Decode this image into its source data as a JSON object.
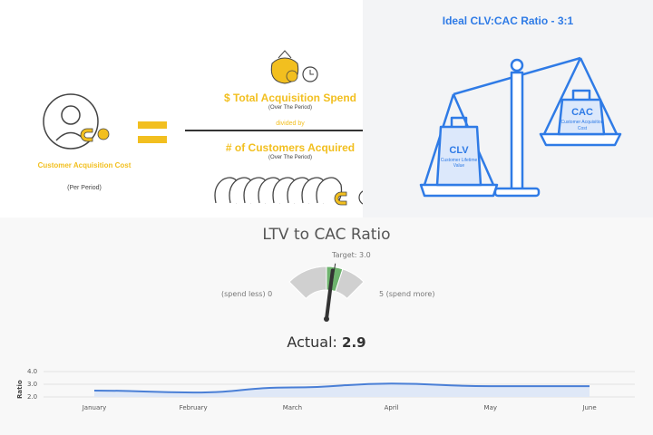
{
  "cac_formula": {
    "label_title": "Customer Acquisition Cost",
    "label_sub": "(Per Period)",
    "numerator": "$ Total Acquisition Spend",
    "numerator_sub": "(Over The Period)",
    "divider_text": "divided by",
    "denominator": "# of Customers Acquired",
    "denominator_sub": "(Over The Period)",
    "accent_color": "#f2bf1f"
  },
  "ratio_scale": {
    "title": "Ideal CLV:CAC Ratio - 3:1",
    "left_bag_title": "CLV",
    "left_bag_sub": "Customer Lifetime Value",
    "right_bag_title": "CAC",
    "right_bag_sub": "Customer Acquisition Cost",
    "accent_color": "#2f7be6"
  },
  "gauge": {
    "title": "LTV to CAC Ratio",
    "target_label": "Target: 3.0",
    "min_label": "(spend less) 0",
    "max_label": "5 (spend more)",
    "actual_label": "Actual:",
    "actual_value": "2.9",
    "min": 0,
    "max": 5,
    "value": 2.9,
    "target": 3.0,
    "good_band": [
      2.5,
      3.5
    ],
    "band_color": "#d0d0d0",
    "good_color": "#6db36d"
  },
  "chart_data": {
    "type": "area",
    "categories": [
      "January",
      "February",
      "March",
      "April",
      "May",
      "June"
    ],
    "values": [
      2.5,
      2.35,
      2.75,
      3.05,
      2.85,
      2.85
    ],
    "ylabel": "Ratio",
    "yticks": [
      "4.0",
      "3.0",
      "2.0"
    ],
    "ylim": [
      2.0,
      4.0
    ],
    "line_color": "#4a7fd6",
    "fill_color": "#dfe8f7",
    "grid": true
  }
}
